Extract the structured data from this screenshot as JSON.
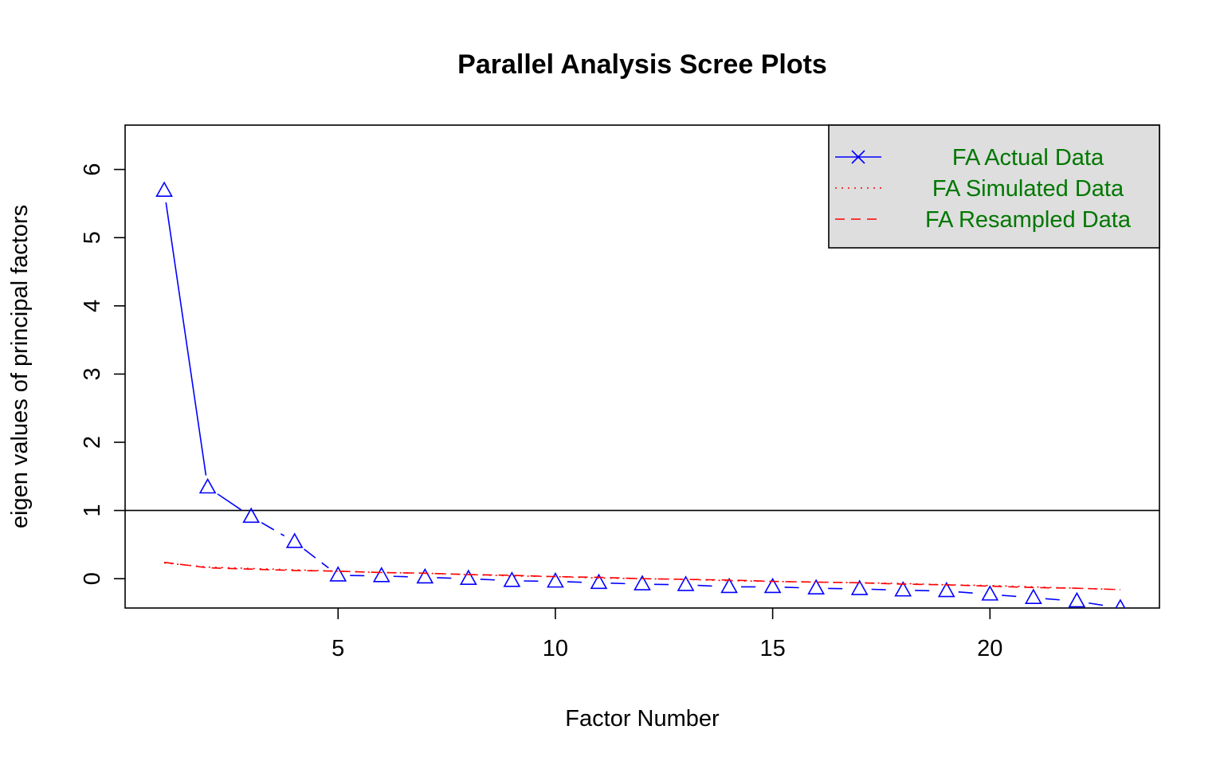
{
  "chart_data": {
    "type": "line",
    "title": "Parallel Analysis Scree Plots",
    "xlabel": "Factor Number",
    "ylabel": "eigen values of principal factors",
    "xlim": [
      0.1,
      23.9
    ],
    "ylim": [
      -0.43,
      6.65
    ],
    "x_ticks": [
      5,
      10,
      15,
      20
    ],
    "y_ticks": [
      0,
      1,
      2,
      3,
      4,
      5,
      6
    ],
    "reference_line": {
      "y": 1
    },
    "grid": false,
    "legend_position": "top-right",
    "x": [
      1,
      2,
      3,
      4,
      5,
      6,
      7,
      8,
      9,
      10,
      11,
      12,
      13,
      14,
      15,
      16,
      17,
      18,
      19,
      20,
      21,
      22,
      23
    ],
    "series": [
      {
        "name": "FA  Actual Data",
        "color": "#0000ff",
        "line_style": "mixed",
        "marker": "triangle-open",
        "values": [
          5.69,
          1.34,
          0.91,
          0.54,
          0.05,
          0.04,
          0.02,
          0.0,
          -0.03,
          -0.04,
          -0.06,
          -0.08,
          -0.09,
          -0.12,
          -0.12,
          -0.14,
          -0.15,
          -0.17,
          -0.18,
          -0.23,
          -0.28,
          -0.33,
          -0.43
        ]
      },
      {
        "name": "FA  Simulated Data",
        "color": "#ff0000",
        "line_style": "dotted",
        "marker": "none",
        "values": [
          0.23,
          0.17,
          0.15,
          0.13,
          0.11,
          0.09,
          0.08,
          0.06,
          0.04,
          0.03,
          0.01,
          0.0,
          -0.01,
          -0.03,
          -0.04,
          -0.05,
          -0.06,
          -0.07,
          -0.09,
          -0.1,
          -0.12,
          -0.14,
          -0.16
        ]
      },
      {
        "name": "FA  Resampled Data",
        "color": "#ff0000",
        "line_style": "dashed",
        "marker": "none",
        "values": [
          0.24,
          0.16,
          0.14,
          0.12,
          0.11,
          0.09,
          0.08,
          0.06,
          0.05,
          0.03,
          0.02,
          0.0,
          -0.01,
          -0.02,
          -0.04,
          -0.05,
          -0.06,
          -0.08,
          -0.09,
          -0.11,
          -0.13,
          -0.14,
          -0.16
        ]
      }
    ],
    "legend": {
      "background": "#dedede",
      "text_color": "#007700",
      "entries": [
        "FA  Actual Data",
        "FA  Simulated Data",
        "FA  Resampled Data"
      ]
    }
  }
}
